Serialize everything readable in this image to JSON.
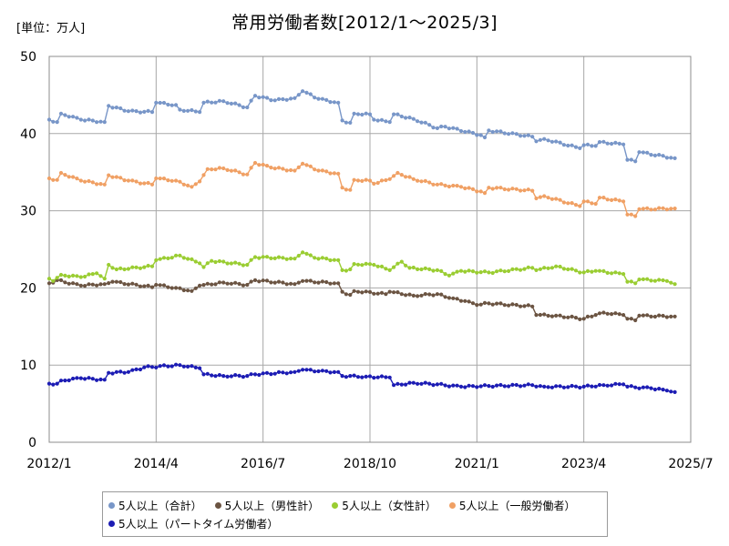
{
  "chart_data": {
    "type": "line",
    "title": "常用労働者数[2012/1～2025/3]",
    "unit_label": "[単位：万人]",
    "xlabel": "",
    "ylabel": "",
    "x_start": "2012-01",
    "x_end": "2025-03",
    "xlim": [
      "2012/1",
      "2025/7"
    ],
    "ylim": [
      0,
      50
    ],
    "y_ticks": [
      0,
      10,
      20,
      30,
      40,
      50
    ],
    "x_ticks": [
      "2012/1",
      "2014/4",
      "2016/7",
      "2018/10",
      "2021/1",
      "2023/4",
      "2025/7"
    ],
    "grid": true,
    "legend_position": "bottom",
    "series": [
      {
        "name": "5人以上（合計）",
        "color": "#7896c8",
        "anchors": [
          [
            "2012-01",
            41.8
          ],
          [
            "2012-03",
            41.5
          ],
          [
            "2012-04",
            42.6
          ],
          [
            "2012-09",
            41.8
          ],
          [
            "2013-03",
            41.5
          ],
          [
            "2013-04",
            43.6
          ],
          [
            "2013-09",
            42.9
          ],
          [
            "2014-03",
            42.8
          ],
          [
            "2014-04",
            44.0
          ],
          [
            "2014-09",
            43.7
          ],
          [
            "2014-10",
            43.1
          ],
          [
            "2015-03",
            42.8
          ],
          [
            "2015-04",
            44.0
          ],
          [
            "2015-09",
            44.2
          ],
          [
            "2016-03",
            43.4
          ],
          [
            "2016-05",
            44.9
          ],
          [
            "2016-10",
            44.3
          ],
          [
            "2017-03",
            44.6
          ],
          [
            "2017-05",
            45.5
          ],
          [
            "2017-09",
            44.5
          ],
          [
            "2018-02",
            44.0
          ],
          [
            "2018-03",
            41.7
          ],
          [
            "2018-05",
            41.4
          ],
          [
            "2018-06",
            42.6
          ],
          [
            "2018-10",
            42.5
          ],
          [
            "2018-11",
            41.8
          ],
          [
            "2019-03",
            41.5
          ],
          [
            "2019-04",
            42.5
          ],
          [
            "2019-09",
            41.9
          ],
          [
            "2020-03",
            40.7
          ],
          [
            "2020-05",
            40.9
          ],
          [
            "2021-02",
            39.8
          ],
          [
            "2021-03",
            39.5
          ],
          [
            "2021-04",
            40.4
          ],
          [
            "2022-03",
            39.6
          ],
          [
            "2022-04",
            39.0
          ],
          [
            "2022-06",
            39.3
          ],
          [
            "2023-03",
            38.1
          ],
          [
            "2023-04",
            38.5
          ],
          [
            "2023-07",
            38.4
          ],
          [
            "2023-08",
            38.9
          ],
          [
            "2024-02",
            38.6
          ],
          [
            "2024-03",
            36.6
          ],
          [
            "2024-05",
            36.4
          ],
          [
            "2024-06",
            37.6
          ],
          [
            "2025-03",
            36.8
          ]
        ]
      },
      {
        "name": "5人以上（男性計）",
        "color": "#6b5442",
        "anchors": [
          [
            "2012-01",
            20.6
          ],
          [
            "2012-03",
            21.0
          ],
          [
            "2012-09",
            20.3
          ],
          [
            "2013-03",
            20.5
          ],
          [
            "2013-05",
            20.8
          ],
          [
            "2014-03",
            20.1
          ],
          [
            "2014-04",
            20.4
          ],
          [
            "2014-09",
            20.0
          ],
          [
            "2015-01",
            19.6
          ],
          [
            "2015-03",
            20.3
          ],
          [
            "2015-09",
            20.7
          ],
          [
            "2016-03",
            20.4
          ],
          [
            "2016-05",
            21.0
          ],
          [
            "2017-03",
            20.5
          ],
          [
            "2017-05",
            20.9
          ],
          [
            "2018-02",
            20.6
          ],
          [
            "2018-03",
            19.5
          ],
          [
            "2018-05",
            19.1
          ],
          [
            "2018-06",
            19.6
          ],
          [
            "2019-02",
            19.2
          ],
          [
            "2019-03",
            19.5
          ],
          [
            "2019-09",
            19.0
          ],
          [
            "2020-03",
            19.2
          ],
          [
            "2020-06",
            18.7
          ],
          [
            "2020-10",
            18.3
          ],
          [
            "2021-01",
            17.8
          ],
          [
            "2021-04",
            18.0
          ],
          [
            "2022-03",
            17.6
          ],
          [
            "2022-04",
            16.5
          ],
          [
            "2022-09",
            16.4
          ],
          [
            "2023-04",
            16.0
          ],
          [
            "2023-07",
            16.5
          ],
          [
            "2023-09",
            16.8
          ],
          [
            "2024-02",
            16.5
          ],
          [
            "2024-03",
            16.0
          ],
          [
            "2024-05",
            15.8
          ],
          [
            "2024-06",
            16.4
          ],
          [
            "2025-03",
            16.3
          ]
        ]
      },
      {
        "name": "5人以上（女性計）",
        "color": "#9acd32",
        "anchors": [
          [
            "2012-01",
            21.2
          ],
          [
            "2012-02",
            20.9
          ],
          [
            "2012-04",
            21.7
          ],
          [
            "2012-09",
            21.4
          ],
          [
            "2013-01",
            21.9
          ],
          [
            "2013-03",
            21.2
          ],
          [
            "2013-04",
            23.0
          ],
          [
            "2013-06",
            22.4
          ],
          [
            "2014-03",
            22.8
          ],
          [
            "2014-04",
            23.6
          ],
          [
            "2014-10",
            24.2
          ],
          [
            "2015-03",
            23.2
          ],
          [
            "2015-04",
            22.7
          ],
          [
            "2015-06",
            23.5
          ],
          [
            "2016-03",
            23.0
          ],
          [
            "2016-05",
            24.0
          ],
          [
            "2017-03",
            23.8
          ],
          [
            "2017-05",
            24.6
          ],
          [
            "2017-08",
            23.9
          ],
          [
            "2018-02",
            23.6
          ],
          [
            "2018-03",
            22.3
          ],
          [
            "2018-05",
            22.4
          ],
          [
            "2018-06",
            23.1
          ],
          [
            "2018-11",
            23.0
          ],
          [
            "2019-03",
            22.3
          ],
          [
            "2019-06",
            23.4
          ],
          [
            "2019-08",
            22.6
          ],
          [
            "2020-03",
            22.3
          ],
          [
            "2020-06",
            21.6
          ],
          [
            "2020-09",
            22.2
          ],
          [
            "2021-04",
            22.0
          ],
          [
            "2022-03",
            22.6
          ],
          [
            "2022-04",
            22.3
          ],
          [
            "2022-09",
            22.8
          ],
          [
            "2023-04",
            22.0
          ],
          [
            "2023-07",
            22.2
          ],
          [
            "2024-02",
            21.8
          ],
          [
            "2024-03",
            20.8
          ],
          [
            "2024-05",
            20.6
          ],
          [
            "2024-06",
            21.1
          ],
          [
            "2025-01",
            20.9
          ],
          [
            "2025-03",
            20.5
          ]
        ]
      },
      {
        "name": "5人以上（一般労働者）",
        "color": "#f0a064",
        "anchors": [
          [
            "2012-01",
            34.2
          ],
          [
            "2012-03",
            34.0
          ],
          [
            "2012-04",
            34.9
          ],
          [
            "2012-09",
            33.9
          ],
          [
            "2013-03",
            33.4
          ],
          [
            "2013-04",
            34.6
          ],
          [
            "2013-09",
            33.9
          ],
          [
            "2014-03",
            33.4
          ],
          [
            "2014-04",
            34.2
          ],
          [
            "2014-09",
            33.9
          ],
          [
            "2015-01",
            33.1
          ],
          [
            "2015-03",
            33.8
          ],
          [
            "2015-05",
            35.4
          ],
          [
            "2015-09",
            35.5
          ],
          [
            "2016-03",
            34.7
          ],
          [
            "2016-05",
            36.2
          ],
          [
            "2016-09",
            35.6
          ],
          [
            "2017-03",
            35.2
          ],
          [
            "2017-05",
            36.1
          ],
          [
            "2017-09",
            35.2
          ],
          [
            "2018-02",
            34.8
          ],
          [
            "2018-03",
            33.0
          ],
          [
            "2018-05",
            32.7
          ],
          [
            "2018-06",
            34.0
          ],
          [
            "2018-10",
            33.9
          ],
          [
            "2018-11",
            33.5
          ],
          [
            "2019-03",
            34.1
          ],
          [
            "2019-05",
            34.9
          ],
          [
            "2019-09",
            34.1
          ],
          [
            "2020-03",
            33.4
          ],
          [
            "2020-09",
            33.1
          ],
          [
            "2021-02",
            32.5
          ],
          [
            "2021-03",
            32.3
          ],
          [
            "2021-04",
            33.0
          ],
          [
            "2022-03",
            32.6
          ],
          [
            "2022-04",
            31.6
          ],
          [
            "2022-06",
            31.9
          ],
          [
            "2023-03",
            30.6
          ],
          [
            "2023-04",
            31.2
          ],
          [
            "2023-07",
            30.9
          ],
          [
            "2023-08",
            31.7
          ],
          [
            "2024-02",
            31.2
          ],
          [
            "2024-03",
            29.5
          ],
          [
            "2024-05",
            29.3
          ],
          [
            "2024-06",
            30.2
          ],
          [
            "2025-03",
            30.3
          ]
        ]
      },
      {
        "name": "5人以上（パートタイム労働者）",
        "color": "#1c1cb4",
        "anchors": [
          [
            "2012-01",
            7.6
          ],
          [
            "2012-03",
            7.6
          ],
          [
            "2012-04",
            8.0
          ],
          [
            "2012-09",
            8.3
          ],
          [
            "2013-03",
            8.1
          ],
          [
            "2013-04",
            9.0
          ],
          [
            "2013-09",
            9.1
          ],
          [
            "2014-01",
            9.7
          ],
          [
            "2014-10",
            10.0
          ],
          [
            "2015-03",
            9.6
          ],
          [
            "2015-04",
            8.8
          ],
          [
            "2015-09",
            8.6
          ],
          [
            "2016-03",
            8.6
          ],
          [
            "2016-05",
            8.8
          ],
          [
            "2017-03",
            9.1
          ],
          [
            "2017-05",
            9.4
          ],
          [
            "2017-09",
            9.2
          ],
          [
            "2018-02",
            9.1
          ],
          [
            "2018-03",
            8.6
          ],
          [
            "2018-09",
            8.5
          ],
          [
            "2019-03",
            8.4
          ],
          [
            "2019-04",
            7.4
          ],
          [
            "2019-09",
            7.7
          ],
          [
            "2020-03",
            7.5
          ],
          [
            "2020-09",
            7.2
          ],
          [
            "2021-04",
            7.3
          ],
          [
            "2022-03",
            7.4
          ],
          [
            "2022-06",
            7.2
          ],
          [
            "2023-04",
            7.2
          ],
          [
            "2023-09",
            7.4
          ],
          [
            "2024-02",
            7.5
          ],
          [
            "2024-03",
            7.2
          ],
          [
            "2024-09",
            7.0
          ],
          [
            "2025-01",
            6.7
          ],
          [
            "2025-03",
            6.5
          ]
        ]
      }
    ]
  }
}
